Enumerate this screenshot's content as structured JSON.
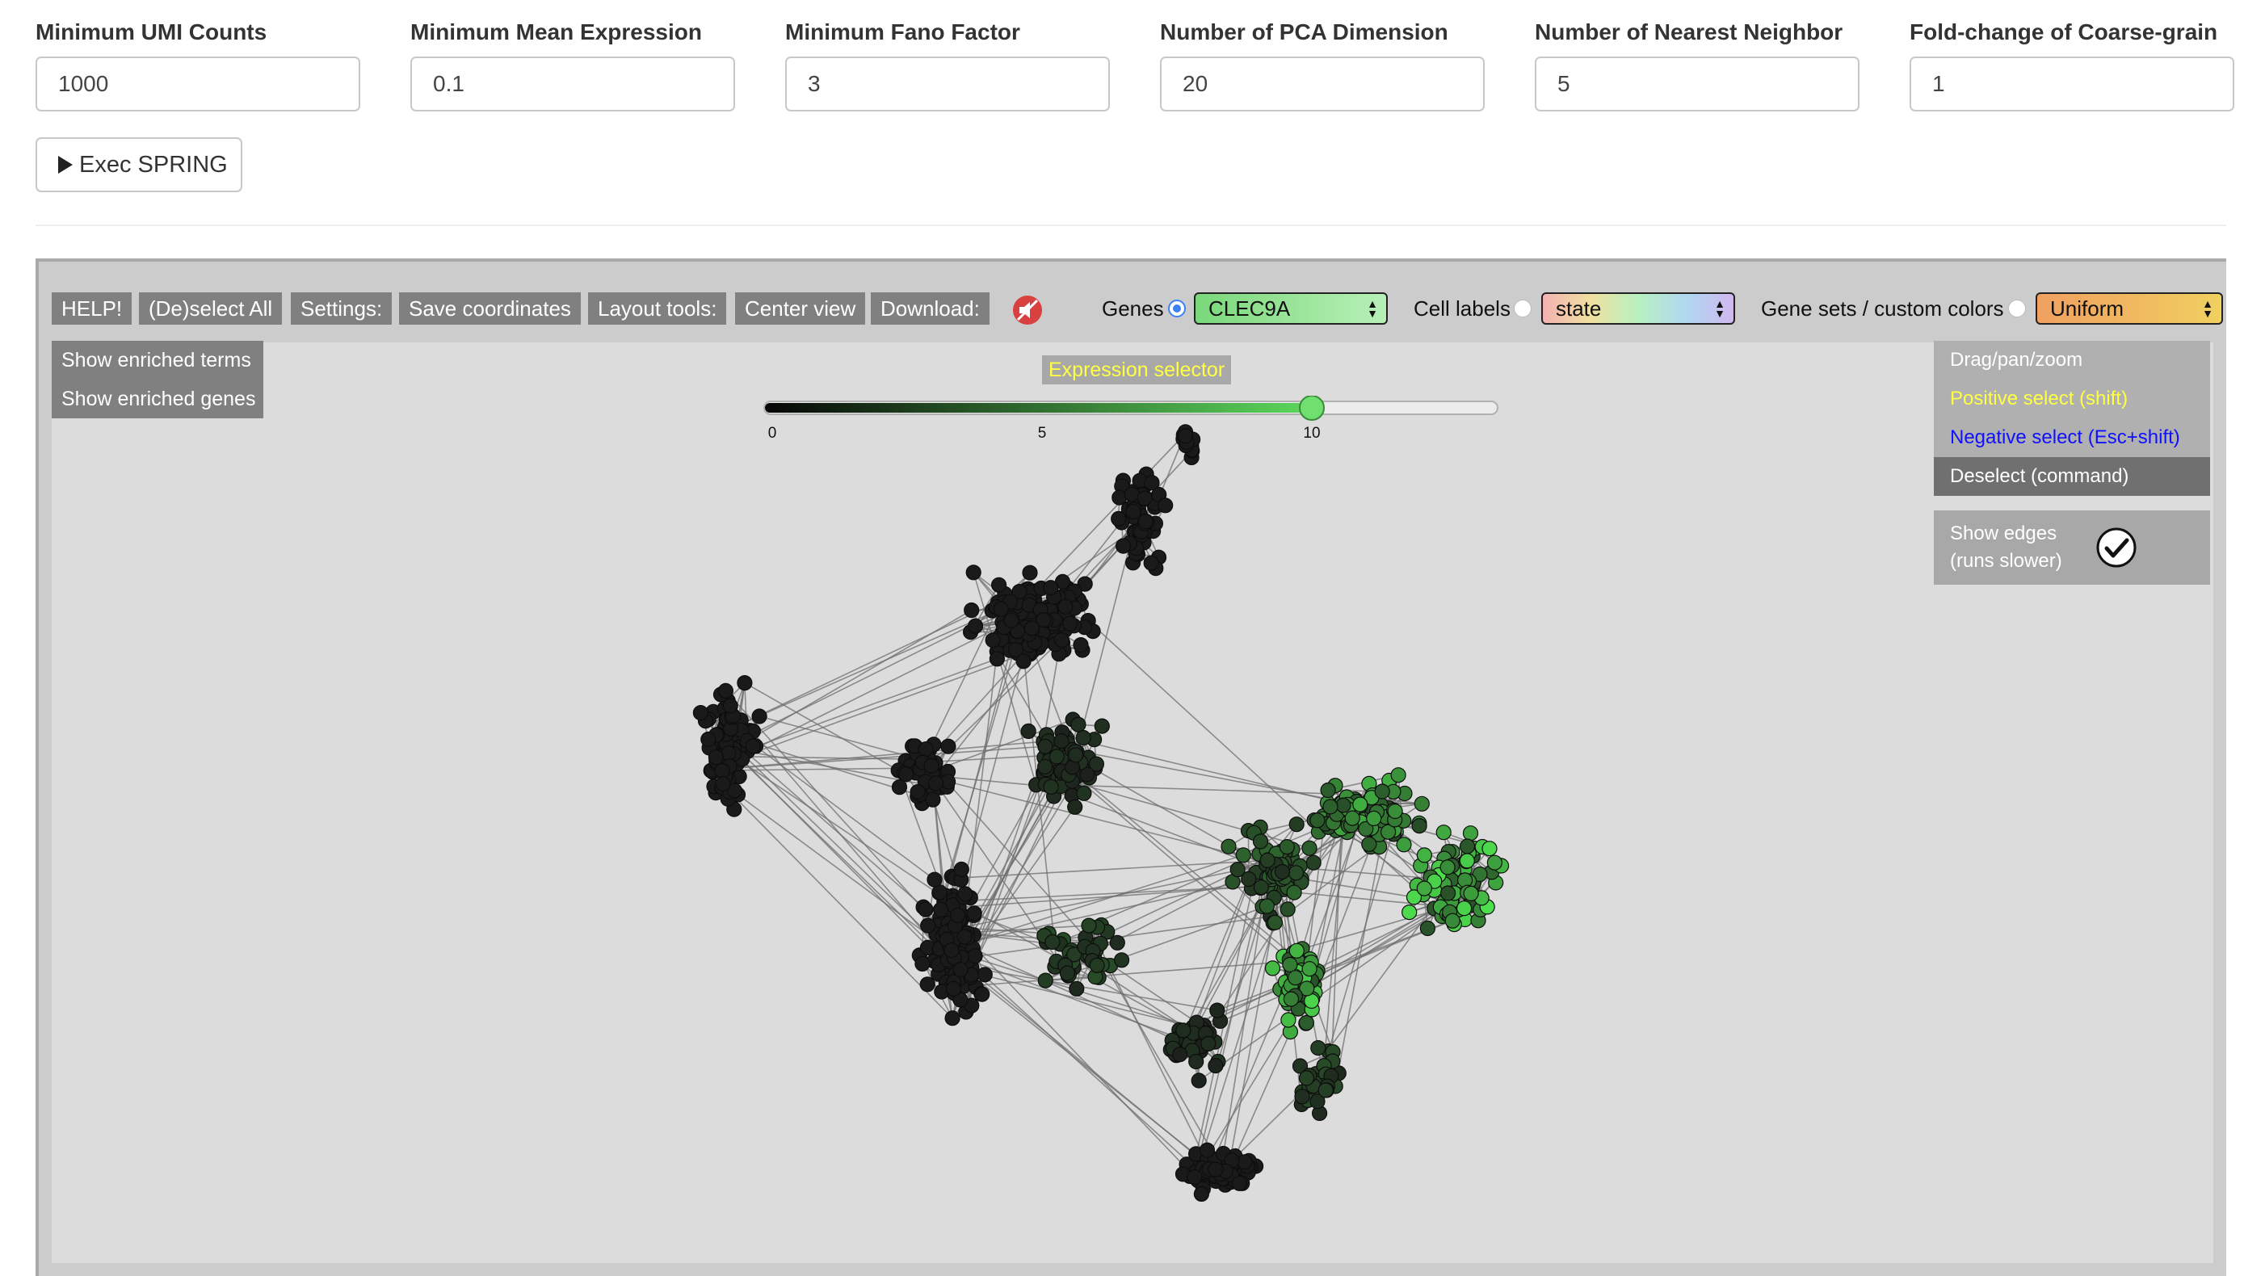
{
  "params": [
    {
      "label": "Minimum UMI Counts",
      "value": "1000"
    },
    {
      "label": "Minimum Mean Expression",
      "value": "0.1"
    },
    {
      "label": "Minimum Fano Factor",
      "value": "3"
    },
    {
      "label": "Number of PCA Dimension",
      "value": "20"
    },
    {
      "label": "Number of Nearest Neighbor",
      "value": "5"
    },
    {
      "label": "Fold-change of Coarse-grain",
      "value": "1"
    }
  ],
  "exec_label": "Exec SPRING",
  "toolbar": {
    "help": "HELP!",
    "deselect_all": "(De)select All",
    "settings": "Settings:",
    "save_coords": "Save coordinates",
    "layout_tools": "Layout tools:",
    "center_view": "Center view",
    "download": "Download:"
  },
  "color_controls": {
    "genes_label": "Genes",
    "genes_value": "CLEC9A",
    "cell_labels_label": "Cell labels",
    "cell_labels_value": "state",
    "gene_sets_label": "Gene sets / custom colors",
    "gene_sets_value": "Uniform",
    "selected": "genes"
  },
  "enrich": {
    "terms": "Show enriched terms",
    "genes": "Show enriched genes"
  },
  "expression_slider": {
    "title": "Expression selector",
    "min": 0,
    "max": 13.5,
    "value": 10,
    "ticks": [
      "0",
      "5",
      "10"
    ]
  },
  "modes": {
    "drag": "Drag/pan/zoom",
    "positive": "Positive select (shift)",
    "negative": "Negative select (Esc+shift)",
    "deselect": "Deselect (command)",
    "active": "deselect"
  },
  "edges": {
    "line1": "Show edges",
    "line2": "(runs slower)",
    "checked": true
  },
  "colors": {
    "node_low": "#1a1a1a",
    "node_high": "#4ee04e",
    "edge": "#6e6e6e",
    "toolbar_btn": "#808080",
    "positive": "#ffff44",
    "negative": "#1010ff"
  }
}
